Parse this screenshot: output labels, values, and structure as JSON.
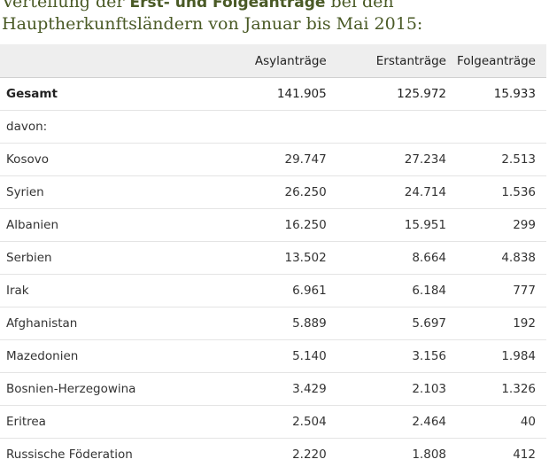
{
  "title": {
    "part1": "Verteilung der ",
    "highlight": "Erst- und Folgeanträge",
    "part2": " bei den",
    "line2": "Hauptherkunftsländern von Januar bis Mai 2015:"
  },
  "table": {
    "headers": [
      "",
      "Asylanträge",
      "Erstanträge",
      "Folgeanträge"
    ],
    "rows": [
      {
        "label": "Gesamt",
        "asyl": "141.905",
        "erst": "125.972",
        "folge": "15.933"
      },
      {
        "label": "davon:",
        "asyl": "",
        "erst": "",
        "folge": ""
      },
      {
        "label": "Kosovo",
        "asyl": "29.747",
        "erst": "27.234",
        "folge": "2.513"
      },
      {
        "label": "Syrien",
        "asyl": "26.250",
        "erst": "24.714",
        "folge": "1.536"
      },
      {
        "label": "Albanien",
        "asyl": "16.250",
        "erst": "15.951",
        "folge": "299"
      },
      {
        "label": "Serbien",
        "asyl": "13.502",
        "erst": "8.664",
        "folge": "4.838"
      },
      {
        "label": "Irak",
        "asyl": "6.961",
        "erst": "6.184",
        "folge": "777"
      },
      {
        "label": "Afghanistan",
        "asyl": "5.889",
        "erst": "5.697",
        "folge": "192"
      },
      {
        "label": "Mazedonien",
        "asyl": "5.140",
        "erst": "3.156",
        "folge": "1.984"
      },
      {
        "label": "Bosnien-Herzegowina",
        "asyl": "3.429",
        "erst": "2.103",
        "folge": "1.326"
      },
      {
        "label": "Eritrea",
        "asyl": "2.504",
        "erst": "2.464",
        "folge": "40"
      },
      {
        "label": "Russische Föderation",
        "asyl": "2.220",
        "erst": "1.808",
        "folge": "412"
      }
    ]
  },
  "colors": {
    "title": "#4a5a26",
    "header_bg": "#eeeeee"
  }
}
